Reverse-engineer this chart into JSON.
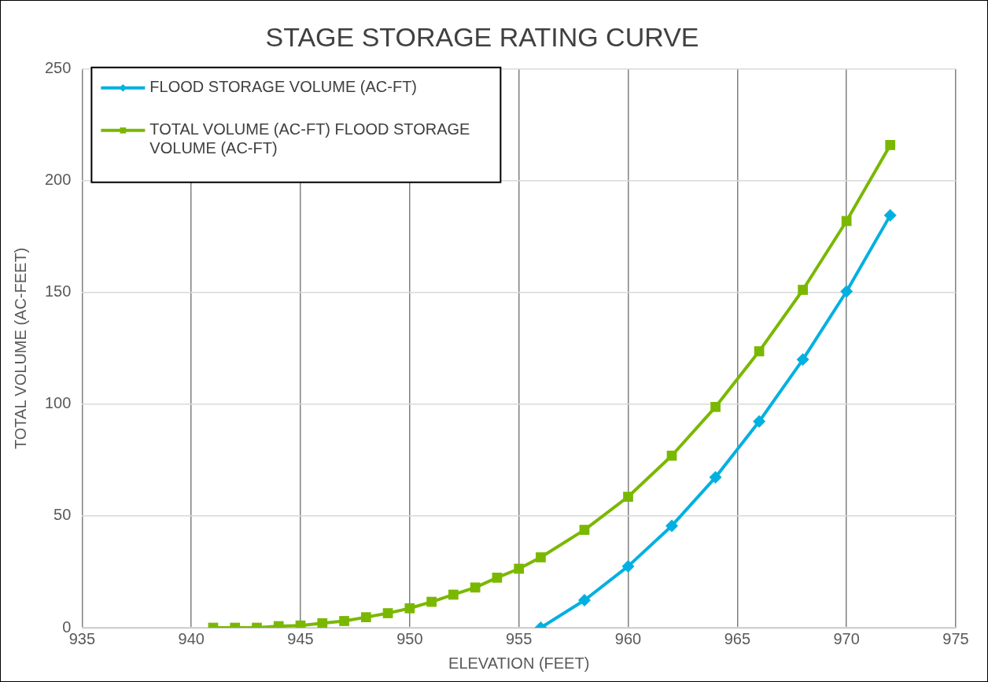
{
  "chart_data": {
    "type": "line",
    "title": "STAGE STORAGE RATING CURVE",
    "xlabel": "ELEVATION (FEET)",
    "ylabel": "TOTAL VOLUME (AC-FEET)",
    "xlim": [
      935,
      975
    ],
    "xticks": [
      935,
      940,
      945,
      950,
      955,
      960,
      965,
      970,
      975
    ],
    "ylim": [
      0,
      250
    ],
    "yticks": [
      0,
      50,
      100,
      150,
      200,
      250
    ],
    "grid": true,
    "legend": "top left",
    "line_style": "solid",
    "series": [
      {
        "name": "FLOOD STORAGE VOLUME (AC-FT)",
        "color": "#00b0e0",
        "marker": "diamond",
        "x": [
          956,
          958,
          960,
          962,
          964,
          966,
          968,
          970,
          972
        ],
        "values": [
          0,
          12.3,
          27.5,
          45.6,
          67.3,
          92.3,
          120,
          150.5,
          184.5
        ]
      },
      {
        "name": "TOTAL VOLUME (AC-FT) FLOOD STORAGE VOLUME (AC-FT)",
        "color": "#7ab800",
        "marker": "square",
        "x": [
          941,
          942,
          943,
          944,
          945,
          946,
          947,
          948,
          949,
          950,
          951,
          952,
          953,
          954,
          955,
          956,
          958,
          960,
          962,
          964,
          966,
          968,
          970,
          972
        ],
        "values": [
          0,
          0,
          0,
          0.7,
          1,
          2,
          3,
          4.7,
          6.5,
          8.7,
          11.6,
          14.8,
          18,
          22.4,
          26.4,
          31.5,
          43.8,
          58.6,
          77,
          98.8,
          123.7,
          151.2,
          182,
          216
        ]
      }
    ]
  }
}
